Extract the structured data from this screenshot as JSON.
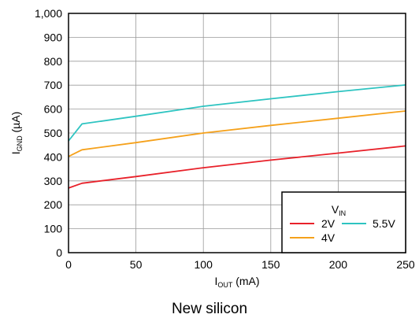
{
  "caption": "New silicon",
  "chart_data": {
    "type": "line",
    "title": "",
    "xlabel": {
      "main": "I",
      "sub": "OUT",
      "unit": " (mA)"
    },
    "ylabel": {
      "main": "I",
      "sub": "GND",
      "unit_open": " (",
      "mu": "µ",
      "unit_close": "A)"
    },
    "xlim": [
      0,
      250
    ],
    "ylim": [
      0,
      1000
    ],
    "x_ticks": [
      0,
      50,
      100,
      150,
      200,
      250
    ],
    "x_tick_labels": [
      "0",
      "50",
      "100",
      "150",
      "200",
      "250"
    ],
    "y_ticks": [
      0,
      100,
      200,
      300,
      400,
      500,
      600,
      700,
      800,
      900,
      1000
    ],
    "y_tick_labels": [
      "0",
      "100",
      "200",
      "300",
      "400",
      "500",
      "600",
      "700",
      "800",
      "900",
      "1,000"
    ],
    "grid": true,
    "legend": {
      "title_main": "V",
      "title_sub": "IN",
      "placement": "bottom-right"
    },
    "series": [
      {
        "name": "2V",
        "color": "#e8212a",
        "x": [
          0,
          10,
          50,
          100,
          150,
          200,
          250
        ],
        "y": [
          270,
          290,
          318,
          355,
          387,
          416,
          446
        ]
      },
      {
        "name": "4V",
        "color": "#f5a11b",
        "x": [
          0,
          10,
          50,
          100,
          150,
          200,
          250
        ],
        "y": [
          402,
          430,
          460,
          500,
          532,
          562,
          592
        ]
      },
      {
        "name": "5.5V",
        "color": "#2ec4c1",
        "x": [
          0,
          10,
          50,
          100,
          150,
          200,
          250
        ],
        "y": [
          467,
          538,
          570,
          612,
          643,
          673,
          701
        ]
      }
    ]
  }
}
